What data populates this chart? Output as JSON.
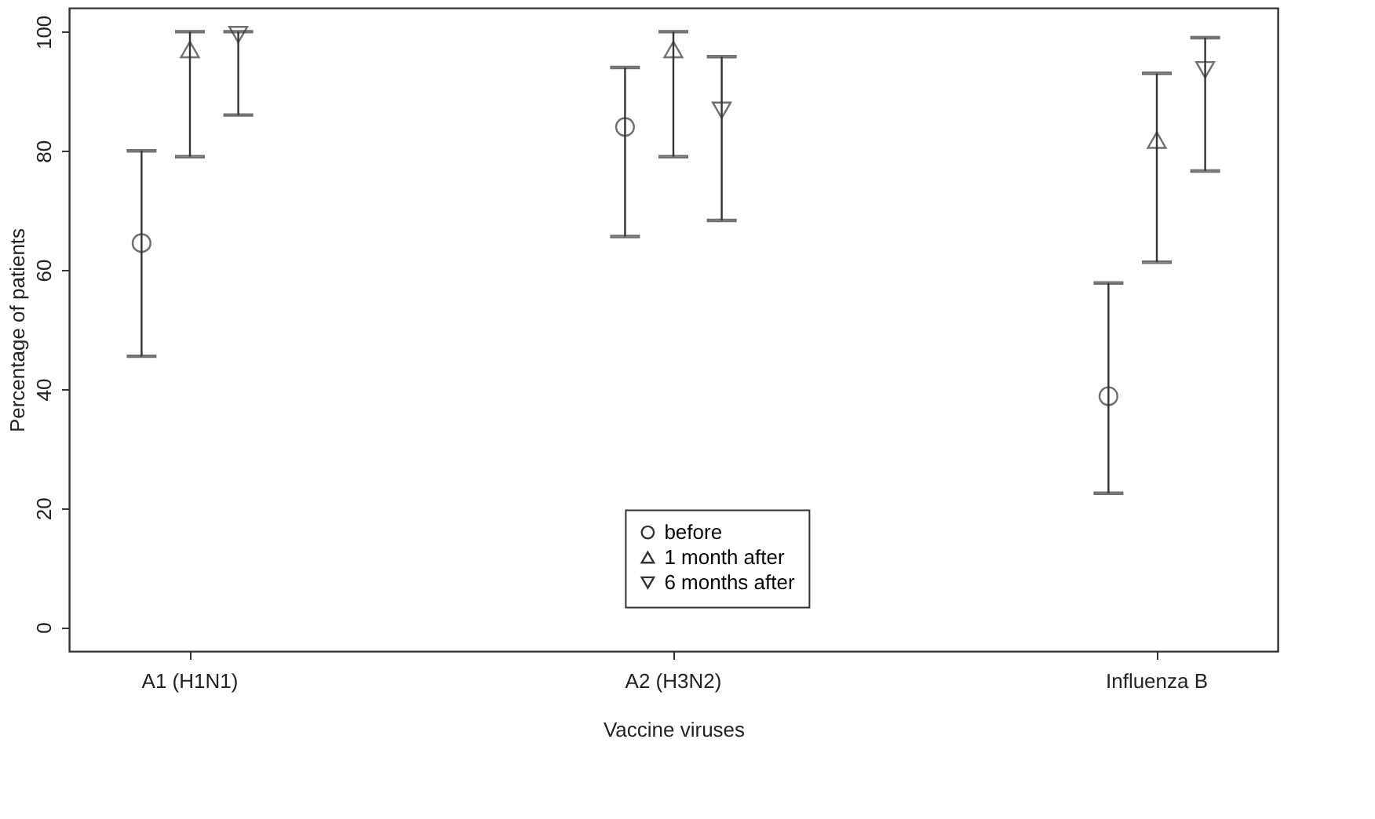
{
  "chart_data": {
    "type": "scatter",
    "xlabel": "Vaccine viruses",
    "ylabel": "Percentage of patients",
    "categories": [
      "A1 (H1N1)",
      "A2 (H3N2)",
      "Influenza B"
    ],
    "series": [
      {
        "name": "before",
        "color": "#333333",
        "marker": "circle",
        "values": [
          64.5,
          84,
          38.8
        ],
        "errors": [
          [
            45.5,
            80
          ],
          [
            65.6,
            94
          ],
          [
            22.5,
            57.8
          ]
        ]
      },
      {
        "name": "1 month after",
        "color": "#333333",
        "marker": "triangle",
        "values": [
          97,
          97,
          81.8
        ],
        "errors": [
          [
            79,
            100
          ],
          [
            79,
            100
          ],
          [
            61.3,
            93
          ]
        ]
      },
      {
        "name": "6 months after",
        "color": "#333333",
        "marker": "triangle-down",
        "values": [
          99.5,
          86.8,
          93.6
        ],
        "errors": [
          [
            86,
            100
          ],
          [
            68.3,
            95.8
          ],
          [
            76.6,
            99
          ]
        ]
      }
    ],
    "ylim": [
      -4,
      104
    ],
    "yticks": [
      0,
      20,
      40,
      60,
      80,
      100
    ],
    "grid": false,
    "legend": "bottom"
  }
}
